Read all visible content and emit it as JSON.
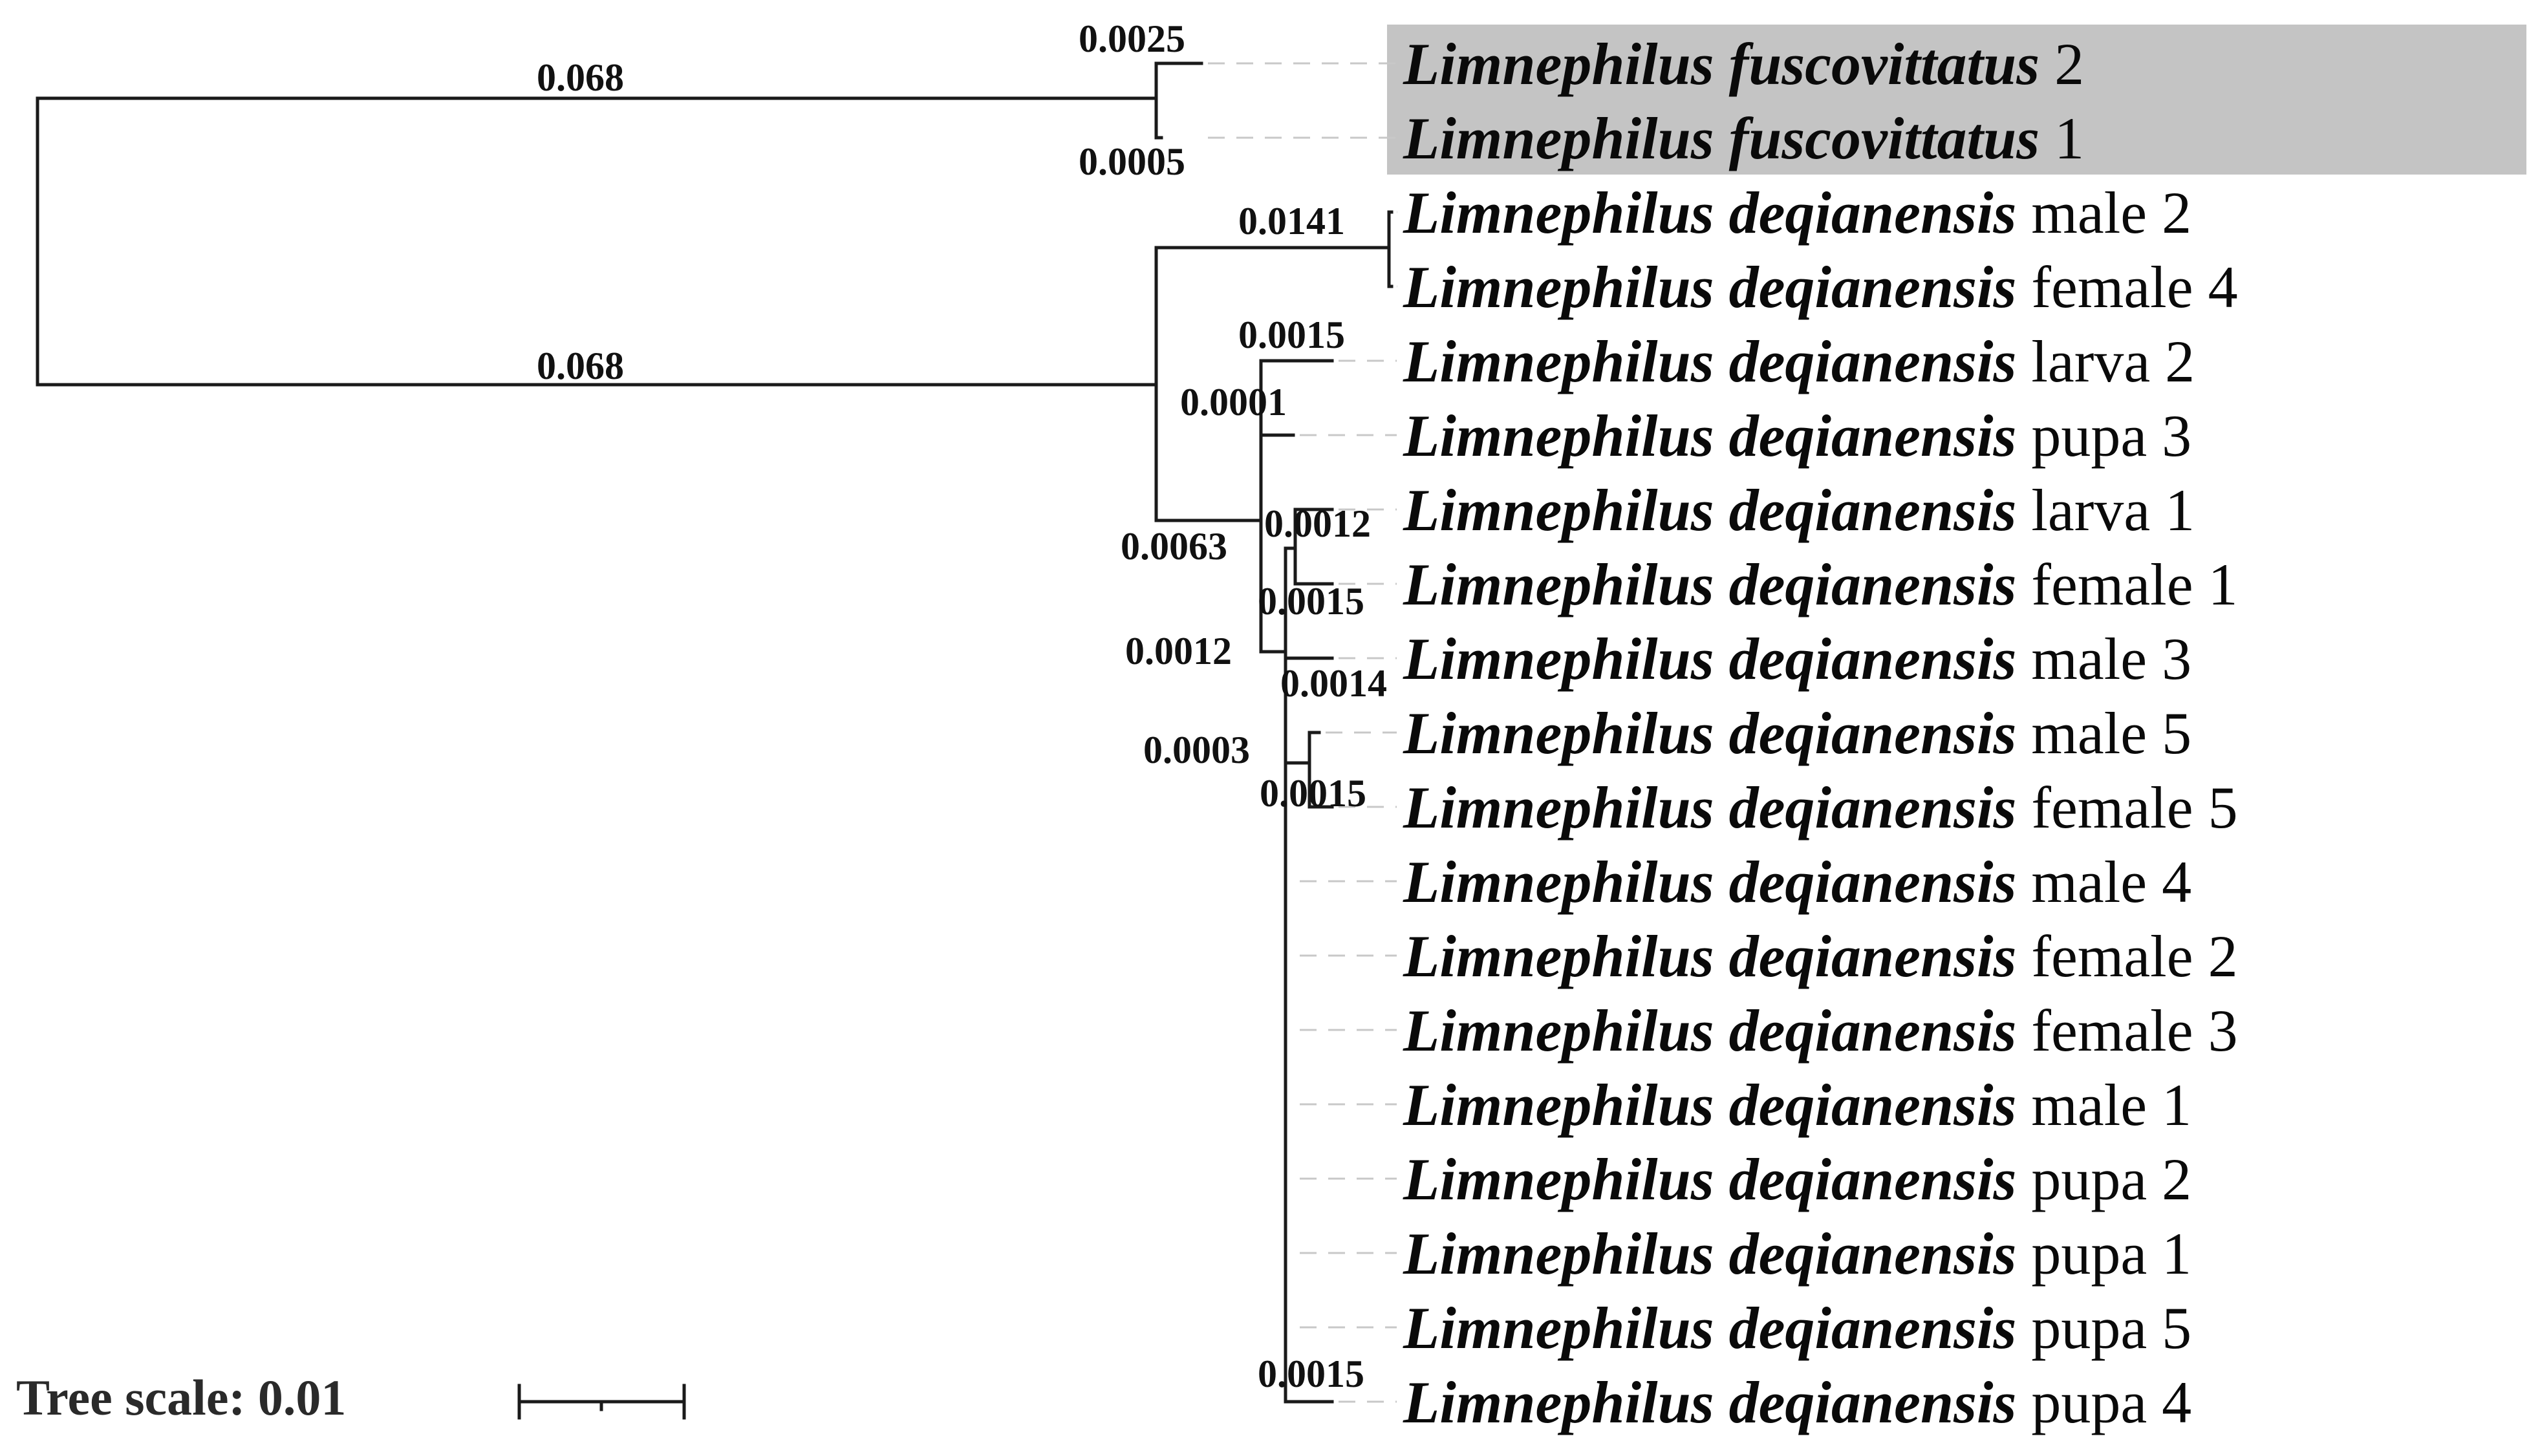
{
  "tree": {
    "highlight_color": "#c4c4c4",
    "branch_color": "#1a1a1a",
    "tips": [
      {
        "genus": "Limnephilus fuscovittatus",
        "label": "2"
      },
      {
        "genus": "Limnephilus fuscovittatus",
        "label": "1"
      },
      {
        "genus": "Limnephilus deqianensis",
        "label": "male 2"
      },
      {
        "genus": "Limnephilus deqianensis",
        "label": "female 4"
      },
      {
        "genus": "Limnephilus deqianensis",
        "label": "larva 2"
      },
      {
        "genus": "Limnephilus deqianensis",
        "label": "pupa 3"
      },
      {
        "genus": "Limnephilus deqianensis",
        "label": "larva 1"
      },
      {
        "genus": "Limnephilus deqianensis",
        "label": "female 1"
      },
      {
        "genus": "Limnephilus deqianensis",
        "label": "male 3"
      },
      {
        "genus": "Limnephilus deqianensis",
        "label": "male 5"
      },
      {
        "genus": "Limnephilus deqianensis",
        "label": "female 5"
      },
      {
        "genus": "Limnephilus deqianensis",
        "label": "male 4"
      },
      {
        "genus": "Limnephilus deqianensis",
        "label": "female 2"
      },
      {
        "genus": "Limnephilus deqianensis",
        "label": "female 3"
      },
      {
        "genus": "Limnephilus deqianensis",
        "label": "male 1"
      },
      {
        "genus": "Limnephilus deqianensis",
        "label": "pupa 2"
      },
      {
        "genus": "Limnephilus deqianensis",
        "label": "pupa 1"
      },
      {
        "genus": "Limnephilus deqianensis",
        "label": "pupa 5"
      },
      {
        "genus": "Limnephilus deqianensis",
        "label": "pupa 4"
      }
    ],
    "branch_labels": {
      "root_upper": "0.068",
      "root_lower": "0.068",
      "fusco_2": "0.0025",
      "fusco_1": "0.0005",
      "male2_female4": "0.0141",
      "larva2": "0.0015",
      "node_0001": "0.0001",
      "node_0063": "0.0063",
      "larva1": "0.0012",
      "female1": "0.0015",
      "node_0012": "0.0012",
      "male3": "0.0014",
      "node_0003": "0.0003",
      "female5": "0.0015",
      "pupa4": "0.0015"
    },
    "scale": {
      "label": "Tree scale: 0.01"
    }
  }
}
